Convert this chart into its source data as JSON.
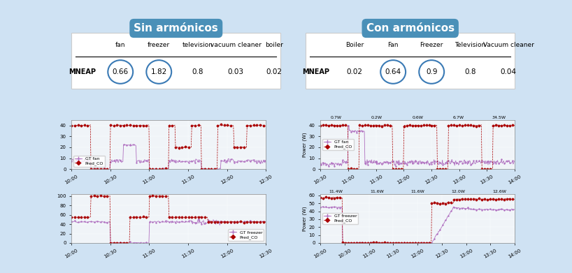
{
  "background_color": "#cfe2f3",
  "title_left": "Sin armónicos",
  "title_right": "Con armónicos",
  "title_bg": "#4a90b8",
  "title_text_color": "white",
  "table_left": {
    "headers": [
      "",
      "fan",
      "freezer",
      "television",
      "vacuum cleaner",
      "boiler"
    ],
    "row_label": "MNEAP",
    "values": [
      "0.66",
      "1.82",
      "0.8",
      "0.03",
      "0.02"
    ],
    "circled": [
      0,
      1
    ]
  },
  "table_right": {
    "headers": [
      "",
      "Boiler",
      "Fan",
      "Freezer",
      "Television",
      "Vacuum cleaner"
    ],
    "row_label": "MNEAP",
    "values": [
      "0.02",
      "0.64",
      "0.9",
      "0.8",
      "0.04"
    ],
    "circled": [
      1,
      2
    ]
  },
  "plot_bg": "#f0f4f8",
  "gt_color": "#b070c0",
  "pred_color": "#aa0000",
  "subplot_titles": {
    "top_right_annotations": [
      "0.7W",
      "0.2W",
      "0.6W",
      "6.7W",
      "34.5W"
    ],
    "bottom_right_annotations": [
      "11.4W",
      "11.6W",
      "11.6W",
      "12.0W",
      "12.6W"
    ]
  },
  "left_top_yticks": [
    0,
    10,
    20,
    30,
    40
  ],
  "left_top_xticks": [
    "10:00",
    "10:30",
    "11:00",
    "11:30",
    "12:00",
    "12:30"
  ],
  "right_top_yticks": [
    0,
    10,
    20,
    30,
    40
  ],
  "right_top_xticks": [
    "10:30",
    "11:00",
    "11:30",
    "12:00",
    "12:30",
    "13:00",
    "13:30",
    "14:00"
  ],
  "left_bottom_yticks": [
    0,
    20,
    40,
    60,
    80,
    100
  ],
  "left_bottom_xticks": [
    "10:00",
    "10:30",
    "11:00",
    "11:30",
    "12:00",
    "12:30"
  ],
  "right_bottom_yticks": [
    0,
    10,
    20,
    30,
    40,
    50,
    60
  ],
  "right_bottom_xticks": [
    "10:00",
    "10:30",
    "11:00",
    "11:30",
    "12:00",
    "12:30",
    "13:00",
    "13:30",
    "14:00"
  ]
}
